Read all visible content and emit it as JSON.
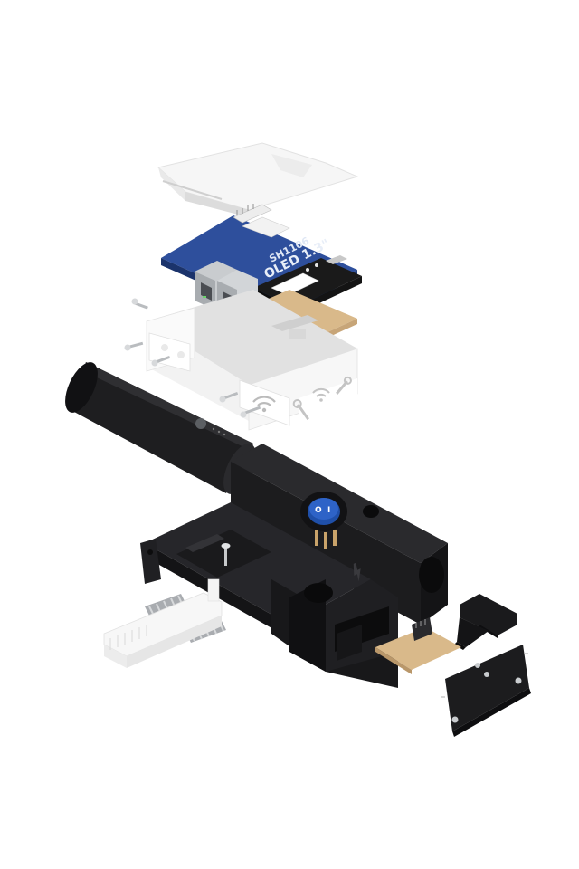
{
  "oled_label": "OLED 1.3\"",
  "driver_label": "SH1106",
  "switch_on_symbol": "I",
  "switch_off_symbol": "O",
  "colors": {
    "pcb_blue": "#2e4f9c",
    "pcb_tan": "#d9b98a",
    "housing_black": "#1c1c1e",
    "shell_white": "#f4f4f4",
    "metal": "#c9cccf",
    "switch_blue": "#1f4fa8"
  },
  "icons": [
    "wifi-icon",
    "wrench-icon",
    "lightning-icon",
    "power-switch-icon"
  ]
}
